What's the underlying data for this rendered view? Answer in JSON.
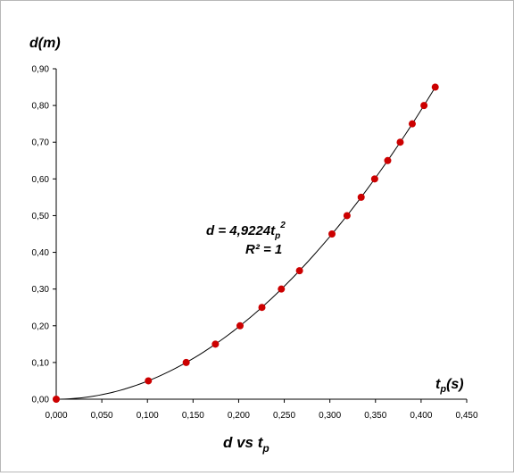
{
  "chart_data": {
    "type": "scatter",
    "title": {
      "main": "d vs t",
      "sub": "p"
    },
    "xlabel": {
      "main": "t",
      "sub": "p",
      "suffix": "(s)"
    },
    "ylabel": "d(m)",
    "xlim": [
      0,
      0.45
    ],
    "ylim": [
      0,
      0.9
    ],
    "x_ticks": [
      "0,000",
      "0,050",
      "0,100",
      "0,150",
      "0,200",
      "0,250",
      "0,300",
      "0,350",
      "0,400",
      "0,450"
    ],
    "y_ticks": [
      "0,00",
      "0,10",
      "0,20",
      "0,30",
      "0,40",
      "0,50",
      "0,60",
      "0,70",
      "0,80",
      "0,90"
    ],
    "grid": false,
    "series": [
      {
        "marker_color": "#cc0000",
        "points": [
          {
            "x": 0.0,
            "y": 0.0
          },
          {
            "x": 0.101,
            "y": 0.05
          },
          {
            "x": 0.1425,
            "y": 0.1
          },
          {
            "x": 0.1745,
            "y": 0.15
          },
          {
            "x": 0.2015,
            "y": 0.2
          },
          {
            "x": 0.2255,
            "y": 0.25
          },
          {
            "x": 0.2468,
            "y": 0.3
          },
          {
            "x": 0.2667,
            "y": 0.35
          },
          {
            "x": 0.3023,
            "y": 0.45
          },
          {
            "x": 0.3188,
            "y": 0.5
          },
          {
            "x": 0.3343,
            "y": 0.55
          },
          {
            "x": 0.3491,
            "y": 0.6
          },
          {
            "x": 0.3634,
            "y": 0.65
          },
          {
            "x": 0.3771,
            "y": 0.7
          },
          {
            "x": 0.3903,
            "y": 0.75
          },
          {
            "x": 0.4032,
            "y": 0.8
          },
          {
            "x": 0.4155,
            "y": 0.85
          }
        ]
      }
    ],
    "trendline": {
      "type": "power",
      "coefficient": 4.9224,
      "exponent": 2,
      "color": "#000000",
      "equation": {
        "prefix": "d = 4,9224t",
        "sub": "p",
        "sup": "2"
      },
      "r_squared": "R² = 1"
    }
  }
}
